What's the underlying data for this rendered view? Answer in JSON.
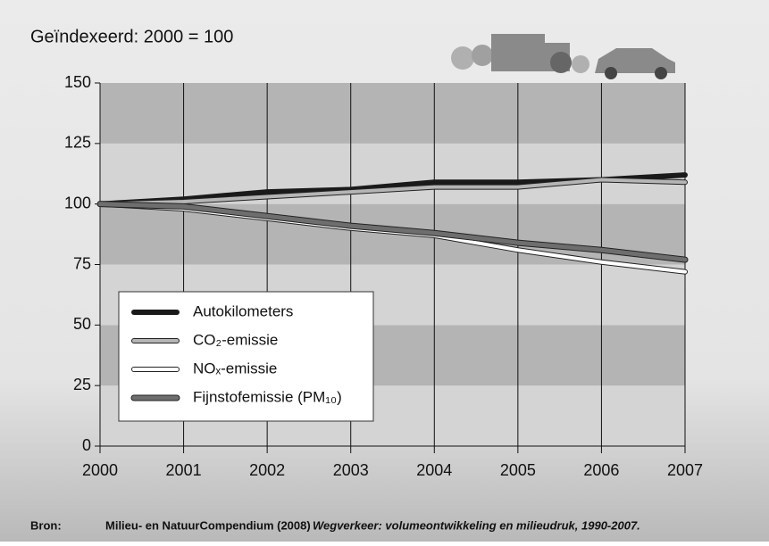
{
  "chart_data": {
    "type": "line",
    "title": "Geïndexeerd: 2000 = 100",
    "x": [
      2000,
      2001,
      2002,
      2003,
      2004,
      2005,
      2006,
      2007
    ],
    "xlim": [
      2000,
      2007
    ],
    "xticks": [
      2000,
      2001,
      2002,
      2003,
      2004,
      2005,
      2006,
      2007
    ],
    "ylim": [
      0,
      150
    ],
    "yticks": [
      0,
      25,
      50,
      75,
      100,
      125,
      150
    ],
    "grid": true,
    "series": [
      {
        "name": "Autokilometers",
        "color": "#1a1a1a",
        "values": [
          100,
          102,
          105,
          106,
          109,
          109,
          110,
          112
        ]
      },
      {
        "name": "CO₂-emissie",
        "color": "#b5b5b5",
        "values": [
          100,
          101,
          103,
          105,
          107,
          107,
          110,
          109
        ]
      },
      {
        "name": "NOₓ-emissie",
        "color": "#ffffff",
        "values": [
          100,
          98,
          94,
          90,
          87,
          81,
          76,
          72
        ]
      },
      {
        "name": "Fijnstofemissie (PM₁₀)",
        "color": "#6e6e6e",
        "values": [
          100,
          99,
          95,
          91,
          88,
          84,
          81,
          77
        ]
      }
    ],
    "source_label": "Bron:",
    "source": "Milieu- en NatuurCompendium (2008)",
    "source_title": "Wegverkeer: volumeontwikkeling en milieudruk, 1990-2007."
  }
}
